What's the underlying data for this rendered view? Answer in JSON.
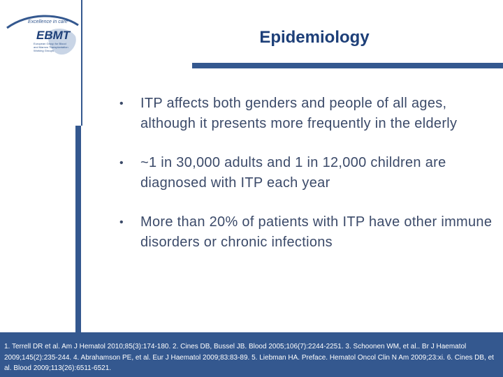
{
  "logo": {
    "tagline": "Excellence in care",
    "name": "EBMT",
    "subtitle": "European Group for Blood and Marrow Transplantation Working Groups"
  },
  "title": "Epidemiology",
  "bullets": [
    {
      "marker": "•",
      "text": "ITP affects both genders and people of all ages, although it presents more frequently in the elderly"
    },
    {
      "marker": "•",
      "text": "~1 in 30,000 adults and 1 in 12,000 children are diagnosed with ITP each year"
    },
    {
      "marker": "•",
      "text": "More than 20% of patients with ITP have other immune disorders or chronic infections"
    }
  ],
  "footer": {
    "references": "1. Terrell DR et al. Am J Hematol 2010;85(3):174-180. 2. Cines DB, Bussel JB. Blood 2005;106(7):2244-2251. 3. Schoonen WM, et al.. Br J Haematol 2009;145(2):235-244. 4. Abrahamson PE, et al. Eur J Haematol 2009;83:83-89. 5. Liebman HA. Preface. Hematol Oncol Clin N Am 2009;23:xi. 6. Cines DB, et al. Blood 2009;113(26):6511-6521."
  },
  "colors": {
    "accent": "#34588f",
    "title": "#1d3f78",
    "body_text": "#3b4a69"
  }
}
